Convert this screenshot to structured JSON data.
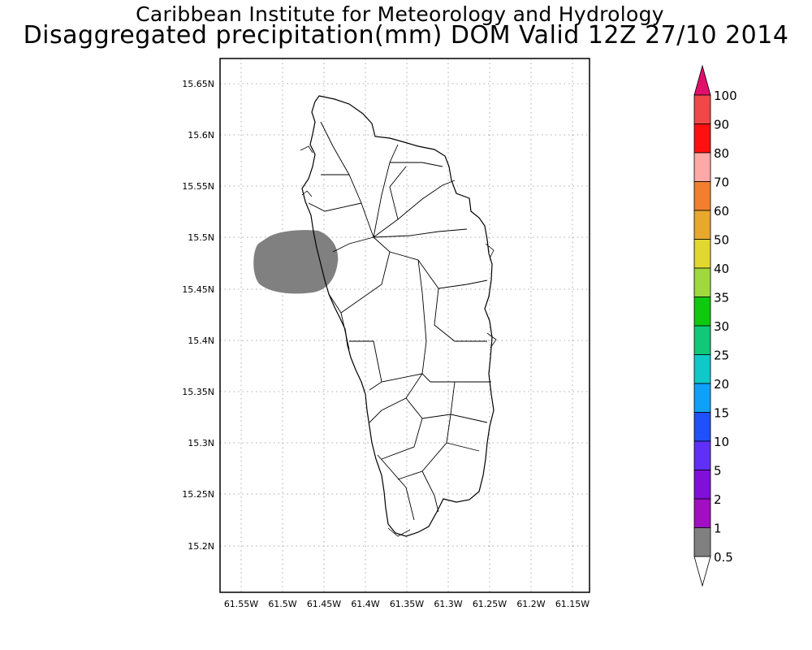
{
  "header": {
    "line1": "Caribbean Institute for Meteorology and Hydrology",
    "line2": "Disaggregated precipitation(mm) DOM Valid 12Z 27/10 2014"
  },
  "map": {
    "x_ticks": [
      "61.55W",
      "61.5W",
      "61.45W",
      "61.4W",
      "61.35W",
      "61.3W",
      "61.25W",
      "61.2W",
      "61.15W"
    ],
    "y_ticks": [
      "15.65N",
      "15.6N",
      "15.55N",
      "15.5N",
      "15.45N",
      "15.4N",
      "15.35N",
      "15.3N",
      "15.25N",
      "15.2N"
    ],
    "shaded_area": {
      "category": "0.5-1",
      "color": "#808080"
    }
  },
  "legend": {
    "items": [
      {
        "label": "100",
        "color": "#e0106a"
      },
      {
        "label": "90",
        "color": "#f04848"
      },
      {
        "label": "80",
        "color": "#ff1010"
      },
      {
        "label": "70",
        "color": "#ffa8a8"
      },
      {
        "label": "60",
        "color": "#f08030"
      },
      {
        "label": "50",
        "color": "#e8a830"
      },
      {
        "label": "40",
        "color": "#e0d830"
      },
      {
        "label": "35",
        "color": "#a0d840"
      },
      {
        "label": "30",
        "color": "#10c810"
      },
      {
        "label": "25",
        "color": "#10c878"
      },
      {
        "label": "20",
        "color": "#10c8c8"
      },
      {
        "label": "15",
        "color": "#10a0f8"
      },
      {
        "label": "10",
        "color": "#2050f8"
      },
      {
        "label": "5",
        "color": "#6030f8"
      },
      {
        "label": "2",
        "color": "#8010d8"
      },
      {
        "label": "1",
        "color": "#a010c0"
      },
      {
        "label": "0.5",
        "color": "#808080"
      }
    ],
    "bottom_color": "#ffffff"
  }
}
